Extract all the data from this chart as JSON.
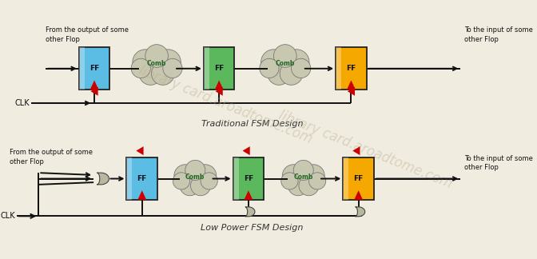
{
  "bg_color": "#f0ece0",
  "title_top": "Traditional FSM Design",
  "title_bottom": "Low Power FSM Design",
  "title_fontsize": 8,
  "ff_color_blue": "#5bbce4",
  "ff_color_green": "#5cb85c",
  "ff_color_yellow": "#f5a800",
  "comb_color": "#c8c8b0",
  "arrow_color": "#cc0000",
  "line_color": "#111111",
  "ff_label": "FF",
  "comb_label": "Comb",
  "text_from_top": "From the output of some\nother Flop",
  "text_to_top": "To the input of some\nother Flop",
  "text_from_bot": "From the output of some\nother Flop",
  "text_to_bot": "To the input of some\nother Flop",
  "text_clk": "CLK",
  "wm_text": "library card.aroadtome.com",
  "wm_color": "#b8a888",
  "wm_alpha": 0.38
}
